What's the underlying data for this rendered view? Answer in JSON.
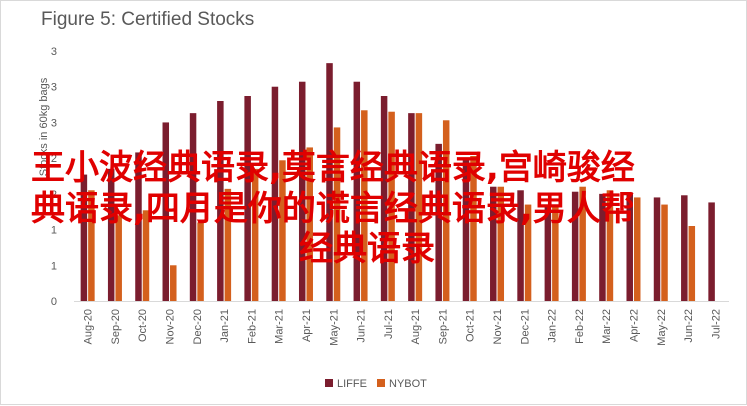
{
  "chart_data": {
    "type": "bar",
    "title": "Figure 5: Certified Stocks",
    "ylabel": "Stocks in 60kg bags",
    "xlabel": "",
    "ylim": [
      0,
      3.5
    ],
    "y_tick_labels": [
      "0",
      "1",
      "1",
      "2",
      "2",
      "3",
      "3",
      "3"
    ],
    "grid": false,
    "legend_position": "bottom",
    "categories": [
      "Aug-20",
      "Sep-20",
      "Oct-20",
      "Nov-20",
      "Dec-20",
      "Jan-21",
      "Feb-21",
      "Mar-21",
      "Apr-21",
      "May-21",
      "Jun-21",
      "Jul-21",
      "Aug-21",
      "Sep-21",
      "Oct-21",
      "Nov-21",
      "Dec-21",
      "Jan-22",
      "Feb-22",
      "Mar-22",
      "Apr-22",
      "May-22",
      "Jun-22",
      "Jul-22"
    ],
    "series": [
      {
        "name": "LIFFE",
        "color": "#7b1d2e",
        "values": [
          1.77,
          1.85,
          2.08,
          2.5,
          2.63,
          2.8,
          2.87,
          3.0,
          3.07,
          3.33,
          3.07,
          2.87,
          2.63,
          2.2,
          1.97,
          1.6,
          1.55,
          1.32,
          1.53,
          1.5,
          1.52,
          1.45,
          1.48,
          1.38
        ]
      },
      {
        "name": "NYBOT",
        "color": "#d4601d",
        "values": [
          1.55,
          1.2,
          1.27,
          0.5,
          1.1,
          1.57,
          1.85,
          1.97,
          2.15,
          2.43,
          2.67,
          2.65,
          2.63,
          2.53,
          2.03,
          1.6,
          1.35,
          1.32,
          1.6,
          1.55,
          1.45,
          1.35,
          1.05,
          null
        ]
      }
    ]
  },
  "overlay": {
    "lines": [
      "王小波经典语录,莫言经典语录,宫崎骏经",
      "典语录,四月是你的谎言经典语录,男人帮",
      "经典语录"
    ]
  }
}
